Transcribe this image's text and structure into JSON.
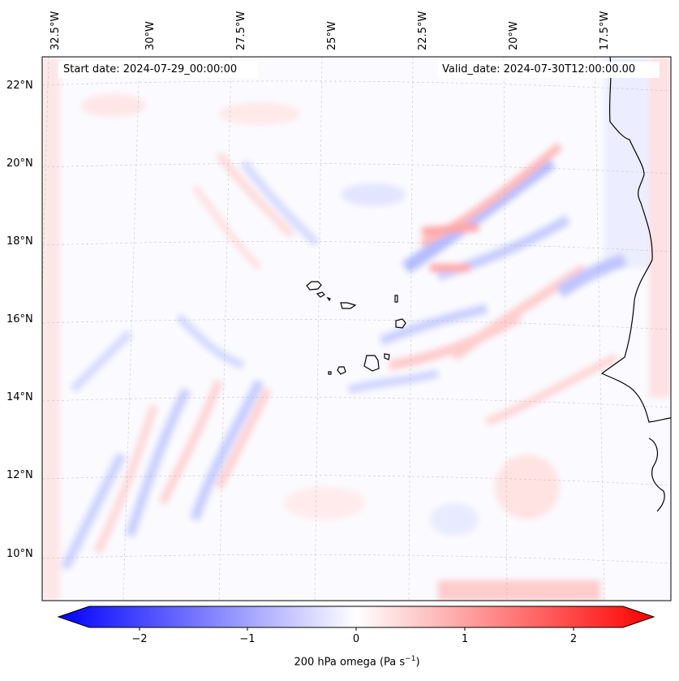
{
  "map": {
    "start_date_label": "Start date: 2024-07-29_00:00:00",
    "valid_date_label": "Valid_date: 2024-07-30T12:00:00.00",
    "lon_labels": [
      "32.5°W",
      "30°W",
      "27.5°W",
      "25°W",
      "22.5°W",
      "20°W",
      "17.5°W"
    ],
    "lat_labels": [
      "22°N",
      "20°N",
      "18°N",
      "16°N",
      "14°N",
      "12°N",
      "10°N"
    ],
    "field": "200 hPa omega",
    "extent": {
      "lon_min": -33.0,
      "lon_max": -15.5,
      "lat_min": 8.8,
      "lat_max": 22.8
    }
  },
  "colorbar": {
    "label_main": "200 hPa omega (Pa s",
    "label_exp": "−1",
    "label_close": ")",
    "ticks": [
      "−2",
      "−1",
      "0",
      "1",
      "2"
    ],
    "tick_values": [
      -2,
      -1,
      0,
      1,
      2
    ],
    "vmin": -2.5,
    "vmax": 2.5,
    "colormap": "bwr",
    "color_low": "#0000ff",
    "color_mid": "#ffffff",
    "color_high": "#ff0000"
  }
}
